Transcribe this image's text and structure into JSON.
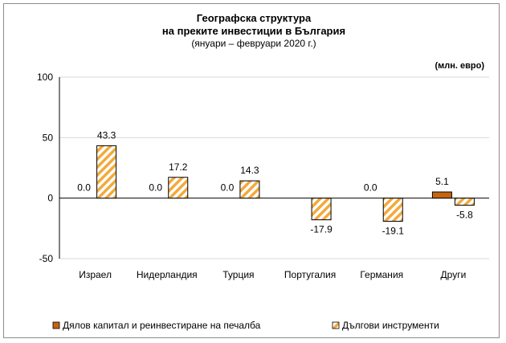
{
  "chart_data": {
    "type": "bar",
    "title": "Географска структура",
    "title_line2": "на преките инвестиции в България",
    "subtitle": "(януари – февруари 2020 г.)",
    "unit_label": "(млн. евро)",
    "categories": [
      "Израел",
      "Нидерландия",
      "Турция",
      "Португалия",
      "Германия",
      "Други"
    ],
    "series": [
      {
        "name": "Дялов капитал и реинвестиране на печалба",
        "values": [
          0.0,
          0.0,
          0.0,
          null,
          0.0,
          5.1
        ],
        "labels": [
          "0.0",
          "0.0",
          "0.0",
          "",
          "0.0",
          "5.1"
        ],
        "color": "#c5650f"
      },
      {
        "name": "Дългови инструменти",
        "values": [
          43.3,
          17.2,
          14.3,
          -17.9,
          -19.1,
          -5.8
        ],
        "labels": [
          "43.3",
          "17.2",
          "14.3",
          "-17.9",
          "-19.1",
          "-5.8"
        ],
        "color": "#f2a93b"
      }
    ],
    "ylim": [
      -50,
      100
    ],
    "yticks": [
      "-50",
      "0",
      "50",
      "100"
    ],
    "grid": true,
    "legend": "bottom"
  }
}
